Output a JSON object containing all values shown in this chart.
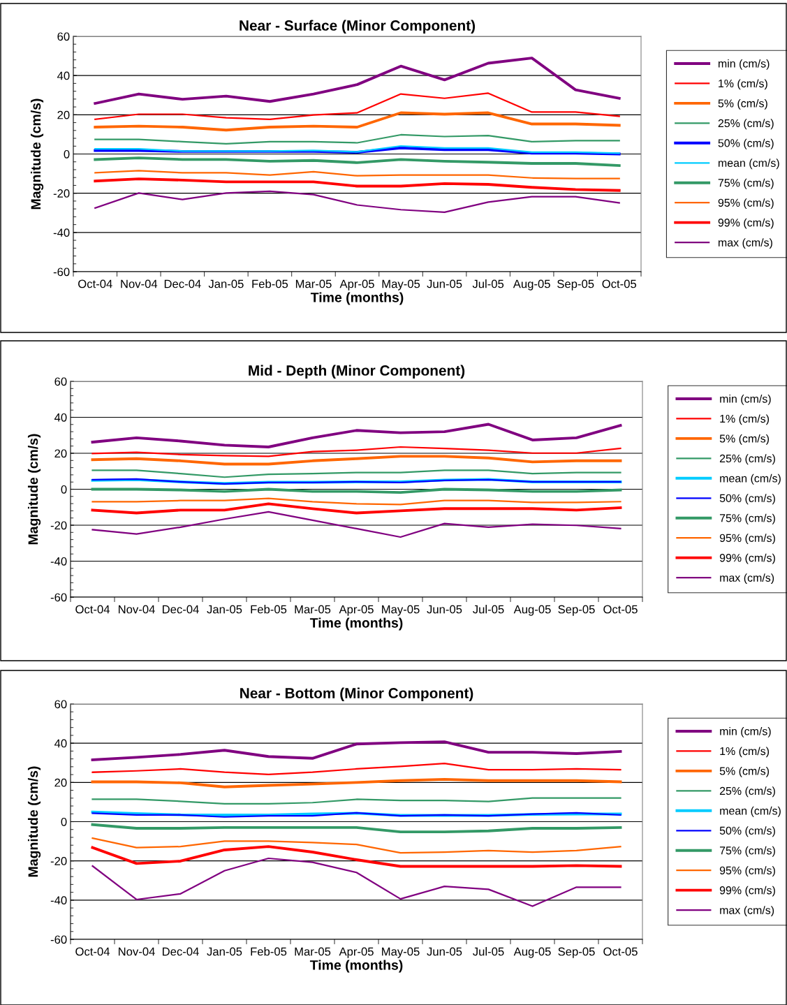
{
  "chart_data": [
    {
      "type": "line",
      "title": "Near - Surface (Minor Component)",
      "xlabel": "Time (months)",
      "ylabel": "Magnitude (cm/s)",
      "categories": [
        "Oct-04",
        "Nov-04",
        "Dec-04",
        "Jan-05",
        "Feb-05",
        "Mar-05",
        "Apr-05",
        "May-05",
        "Jun-05",
        "Jul-05",
        "Aug-05",
        "Sep-05",
        "Oct-05"
      ],
      "ylim": [
        -60,
        60
      ],
      "yticks": [
        -60,
        -40,
        -20,
        0,
        20,
        40,
        60
      ],
      "grid": "y",
      "legend": "right",
      "marker": "none",
      "line_style": "solid",
      "series": [
        {
          "name": "min (cm/s)",
          "color": "#800080",
          "values": [
            25.8,
            30.6,
            27.9,
            29.5,
            26.8,
            30.6,
            35.4,
            44.8,
            37.8,
            46.3,
            48.9,
            32.7,
            28.4
          ]
        },
        {
          "name": "1% (cm/s)",
          "color": "#ff0000",
          "values": [
            17.7,
            20.3,
            20.3,
            18.5,
            17.7,
            19.9,
            21.0,
            30.6,
            28.4,
            31.0,
            21.4,
            21.4,
            19.2
          ]
        },
        {
          "name": "5% (cm/s)",
          "color": "#ff6600",
          "values": [
            13.7,
            14.2,
            13.7,
            12.2,
            13.7,
            14.2,
            13.7,
            21.0,
            20.3,
            21.0,
            15.3,
            15.3,
            14.6
          ]
        },
        {
          "name": "25% (cm/s)",
          "color": "#339966",
          "values": [
            7.4,
            7.4,
            6.3,
            5.2,
            6.3,
            6.3,
            5.7,
            9.8,
            8.9,
            9.4,
            6.3,
            6.8,
            6.8
          ]
        },
        {
          "name": "50% (cm/s)",
          "color": "#0000ff",
          "values": [
            1.8,
            1.8,
            1.3,
            1.3,
            1.3,
            1.3,
            0.9,
            3.1,
            2.2,
            2.2,
            0.4,
            0.4,
            0.0
          ]
        },
        {
          "name": "mean (cm/s)",
          "color": "#00ccff",
          "values": [
            2.6,
            2.6,
            1.5,
            1.5,
            1.5,
            1.8,
            1.1,
            4.1,
            3.1,
            3.1,
            0.9,
            0.9,
            0.4
          ]
        },
        {
          "name": "75% (cm/s)",
          "color": "#339966",
          "values": [
            -2.8,
            -2.0,
            -2.8,
            -2.8,
            -3.7,
            -3.3,
            -4.4,
            -2.8,
            -3.7,
            -4.2,
            -4.8,
            -4.8,
            -5.9
          ]
        },
        {
          "name": "95% (cm/s)",
          "color": "#ff6600",
          "values": [
            -9.6,
            -8.5,
            -9.6,
            -9.6,
            -10.7,
            -9.0,
            -11.1,
            -10.7,
            -10.7,
            -10.7,
            -12.2,
            -12.5,
            -12.5
          ]
        },
        {
          "name": "99% (cm/s)",
          "color": "#ff0000",
          "values": [
            -13.8,
            -12.7,
            -13.3,
            -14.2,
            -14.2,
            -14.2,
            -16.4,
            -16.4,
            -15.1,
            -15.5,
            -17.0,
            -18.1,
            -18.6
          ]
        },
        {
          "name": "max (cm/s)",
          "color": "#800080",
          "values": [
            -27.5,
            -19.9,
            -23.2,
            -19.9,
            -19.0,
            -20.7,
            -26.0,
            -28.4,
            -29.7,
            -24.5,
            -21.8,
            -21.8,
            -24.9
          ]
        }
      ]
    },
    {
      "type": "line",
      "title": "Mid - Depth (Minor Component)",
      "xlabel": "Time (months)",
      "ylabel": "Magnitude (cm/s)",
      "categories": [
        "Oct-04",
        "Nov-04",
        "Dec-04",
        "Jan-05",
        "Feb-05",
        "Mar-05",
        "Apr-05",
        "May-05",
        "Jun-05",
        "Jul-05",
        "Aug-05",
        "Sep-05",
        "Oct-05"
      ],
      "ylim": [
        -60,
        60
      ],
      "yticks": [
        -60,
        -40,
        -20,
        0,
        20,
        40,
        60
      ],
      "grid": "y",
      "legend": "right",
      "marker": "none",
      "line_style": "solid",
      "series": [
        {
          "name": "min (cm/s)",
          "color": "#800080",
          "values": [
            26.2,
            28.6,
            26.8,
            24.5,
            23.5,
            28.6,
            32.7,
            31.4,
            32.0,
            36.1,
            27.4,
            28.6,
            35.5
          ]
        },
        {
          "name": "1% (cm/s)",
          "color": "#ff0000",
          "values": [
            19.9,
            20.5,
            19.3,
            18.7,
            18.3,
            20.9,
            21.7,
            23.5,
            22.7,
            21.7,
            20.1,
            20.1,
            22.7
          ]
        },
        {
          "name": "5% (cm/s)",
          "color": "#ff6600",
          "values": [
            16.4,
            17.0,
            15.8,
            14.0,
            14.0,
            15.8,
            17.0,
            18.3,
            18.3,
            17.4,
            15.2,
            15.8,
            15.8
          ]
        },
        {
          "name": "25% (cm/s)",
          "color": "#339966",
          "values": [
            10.5,
            10.5,
            8.7,
            6.7,
            8.3,
            8.7,
            9.3,
            9.3,
            10.5,
            10.5,
            8.7,
            9.3,
            9.3
          ]
        },
        {
          "name": "mean (cm/s)",
          "color": "#00ccff",
          "values": [
            4.9,
            5.3,
            4.1,
            3.2,
            3.9,
            3.9,
            4.1,
            4.1,
            5.1,
            5.5,
            4.1,
            4.1,
            4.1
          ]
        },
        {
          "name": "50% (cm/s)",
          "color": "#0000ff",
          "values": [
            5.3,
            5.7,
            4.1,
            3.0,
            3.7,
            3.7,
            4.1,
            3.7,
            4.9,
            5.3,
            4.1,
            4.1,
            4.1
          ]
        },
        {
          "name": "75% (cm/s)",
          "color": "#339966",
          "values": [
            0.0,
            0.0,
            -0.4,
            -1.2,
            0.0,
            -1.2,
            -1.2,
            -1.8,
            0.0,
            -0.4,
            -1.2,
            -1.2,
            -0.4
          ]
        },
        {
          "name": "95% (cm/s)",
          "color": "#ff6600",
          "values": [
            -6.9,
            -6.9,
            -6.3,
            -6.3,
            -5.1,
            -6.9,
            -8.1,
            -8.5,
            -6.3,
            -6.3,
            -7.3,
            -7.3,
            -6.9
          ]
        },
        {
          "name": "99% (cm/s)",
          "color": "#ff0000",
          "values": [
            -11.6,
            -13.2,
            -11.6,
            -11.6,
            -8.1,
            -10.8,
            -13.2,
            -12.0,
            -10.8,
            -10.8,
            -10.8,
            -11.6,
            -10.3
          ]
        },
        {
          "name": "max (cm/s)",
          "color": "#800080",
          "values": [
            -22.5,
            -24.9,
            -21.1,
            -16.6,
            -12.6,
            -17.2,
            -21.9,
            -26.6,
            -19.1,
            -21.1,
            -19.5,
            -20.1,
            -21.9
          ]
        }
      ]
    },
    {
      "type": "line",
      "title": "Near - Bottom (Minor Component)",
      "xlabel": "Time (months)",
      "ylabel": "Magnitude (cm/s)",
      "categories": [
        "Oct-04",
        "Nov-04",
        "Dec-04",
        "Jan-05",
        "Feb-05",
        "Mar-05",
        "Apr-05",
        "May-05",
        "Jun-05",
        "Jul-05",
        "Aug-05",
        "Sep-05",
        "Oct-05"
      ],
      "ylim": [
        -60,
        60
      ],
      "yticks": [
        -60,
        -40,
        -20,
        0,
        20,
        40,
        60
      ],
      "grid": "y",
      "legend": "right",
      "marker": "none",
      "line_style": "solid",
      "series": [
        {
          "name": "min (cm/s)",
          "color": "#800080",
          "values": [
            31.5,
            32.8,
            34.3,
            36.4,
            33.2,
            32.3,
            39.6,
            40.3,
            40.7,
            35.4,
            35.4,
            34.7,
            35.8
          ]
        },
        {
          "name": "1% (cm/s)",
          "color": "#ff0000",
          "values": [
            25.2,
            25.9,
            26.9,
            25.2,
            24.1,
            25.2,
            26.9,
            28.2,
            29.7,
            26.5,
            26.5,
            26.9,
            26.5
          ]
        },
        {
          "name": "5% (cm/s)",
          "color": "#ff6600",
          "values": [
            20.3,
            20.3,
            19.8,
            17.7,
            18.5,
            19.2,
            20.0,
            20.9,
            21.6,
            20.9,
            20.9,
            20.9,
            20.3
          ]
        },
        {
          "name": "25% (cm/s)",
          "color": "#339966",
          "values": [
            11.4,
            11.4,
            10.4,
            9.1,
            9.1,
            9.7,
            11.4,
            10.8,
            10.8,
            10.3,
            12.1,
            12.1,
            12.1
          ]
        },
        {
          "name": "mean (cm/s)",
          "color": "#00ccff",
          "values": [
            4.9,
            4.1,
            3.5,
            3.4,
            3.4,
            3.9,
            4.3,
            3.2,
            3.2,
            3.2,
            3.7,
            3.9,
            3.9
          ]
        },
        {
          "name": "50% (cm/s)",
          "color": "#0000ff",
          "values": [
            4.3,
            3.4,
            3.4,
            2.4,
            3.0,
            3.0,
            4.5,
            3.0,
            3.4,
            3.0,
            3.9,
            4.5,
            3.4
          ]
        },
        {
          "name": "75% (cm/s)",
          "color": "#339966",
          "values": [
            -1.5,
            -3.4,
            -3.4,
            -3.0,
            -3.0,
            -3.0,
            -3.0,
            -5.2,
            -5.2,
            -4.7,
            -3.4,
            -3.4,
            -3.0
          ]
        },
        {
          "name": "95% (cm/s)",
          "color": "#ff6600",
          "values": [
            -8.4,
            -13.2,
            -12.7,
            -9.9,
            -9.9,
            -10.6,
            -11.6,
            -15.9,
            -15.5,
            -14.7,
            -15.5,
            -14.7,
            -12.7
          ]
        },
        {
          "name": "99% (cm/s)",
          "color": "#ff0000",
          "values": [
            -13.2,
            -21.3,
            -20.1,
            -14.4,
            -12.7,
            -15.5,
            -19.4,
            -22.8,
            -22.8,
            -22.8,
            -22.8,
            -22.4,
            -22.8
          ]
        },
        {
          "name": "max (cm/s)",
          "color": "#800080",
          "values": [
            -22.6,
            -39.7,
            -36.8,
            -25.0,
            -18.7,
            -20.7,
            -25.9,
            -39.4,
            -33.0,
            -34.5,
            -43.1,
            -33.4,
            -33.4
          ]
        }
      ]
    }
  ]
}
